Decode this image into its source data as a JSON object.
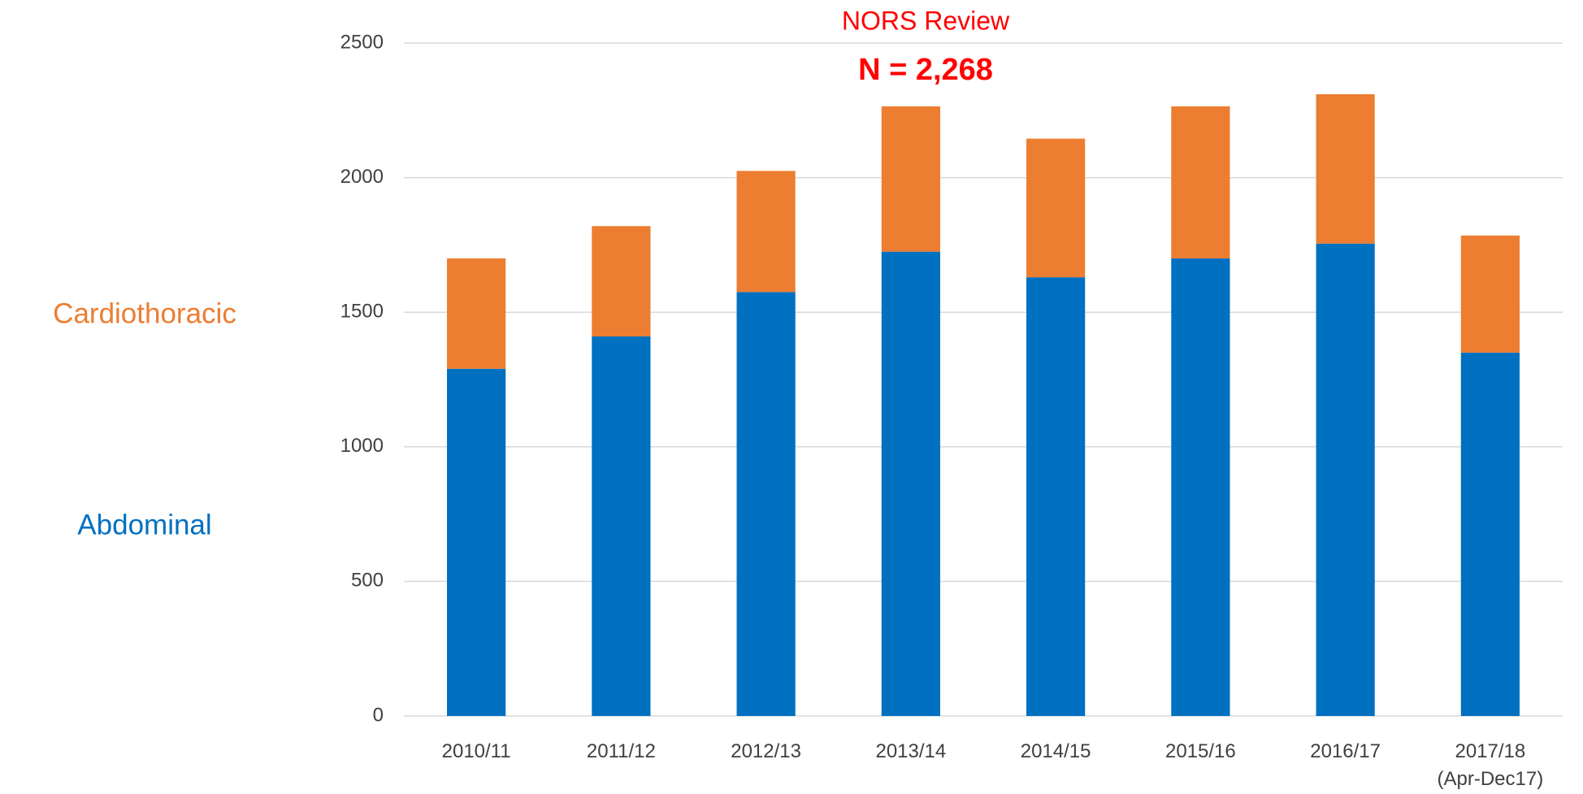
{
  "chart_data": {
    "type": "stacked_bar",
    "title": "NORS Review",
    "subtitle": "N = 2,268",
    "categories": [
      "2010/11",
      "2011/12",
      "2012/13",
      "2013/14",
      "2014/15",
      "2015/16",
      "2016/17",
      "2017/18\n(Apr-Dec17)"
    ],
    "series": [
      {
        "name": "Abdominal",
        "color": "#0070c0",
        "values": [
          1290,
          1410,
          1575,
          1725,
          1630,
          1700,
          1755,
          1350
        ]
      },
      {
        "name": "Cardiothoracic",
        "color": "#ed7d31",
        "values": [
          410,
          410,
          450,
          540,
          515,
          565,
          555,
          435
        ]
      }
    ],
    "ylim": [
      0,
      2500
    ],
    "yticks": [
      0,
      500,
      1000,
      1500,
      2000,
      2500
    ],
    "grid": true
  }
}
